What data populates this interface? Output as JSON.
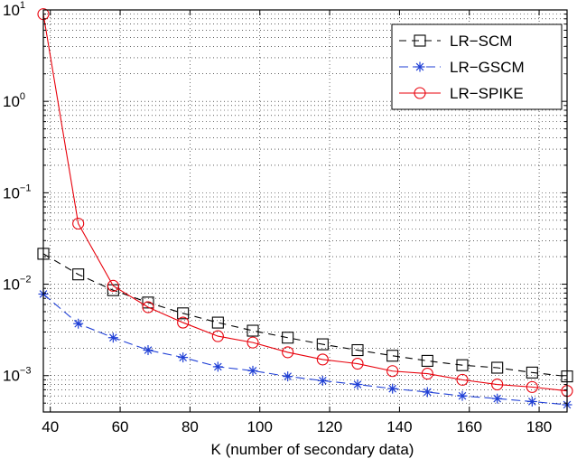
{
  "chart_data": {
    "type": "line",
    "xlabel": "K (number of secondary data)",
    "ylabel": "",
    "title": "",
    "xlim": [
      38,
      188
    ],
    "ylim": [
      0.0004,
      10
    ],
    "yscale": "log",
    "grid": true,
    "legend_position": "top-right",
    "x_ticks": [
      40,
      60,
      80,
      100,
      120,
      140,
      160,
      180
    ],
    "y_ticks": [
      {
        "value": 0.001,
        "base": "10",
        "exp": "−3"
      },
      {
        "value": 0.01,
        "base": "10",
        "exp": "−2"
      },
      {
        "value": 0.1,
        "base": "10",
        "exp": "−1"
      },
      {
        "value": 1,
        "base": "10",
        "exp": "0"
      },
      {
        "value": 10,
        "base": "10",
        "exp": "1"
      }
    ],
    "x": [
      38,
      48,
      58,
      68,
      78,
      88,
      98,
      108,
      118,
      128,
      138,
      148,
      158,
      168,
      178,
      188
    ],
    "series": [
      {
        "name": "LR−SCM",
        "color": "#000000",
        "line": "dashed",
        "marker": "square",
        "values": [
          0.0215,
          0.0128,
          0.0086,
          0.0063,
          0.0048,
          0.0038,
          0.0031,
          0.0026,
          0.0022,
          0.0019,
          0.00165,
          0.00145,
          0.0013,
          0.00122,
          0.00108,
          0.00098
        ]
      },
      {
        "name": "LR−GSCM",
        "color": "#1f3fd6",
        "line": "dashdot",
        "marker": "asterisk",
        "values": [
          0.0078,
          0.0037,
          0.0026,
          0.0019,
          0.00158,
          0.00125,
          0.00113,
          0.00098,
          0.00088,
          0.0008,
          0.00072,
          0.00066,
          0.0006,
          0.00056,
          0.00052,
          0.00048
        ]
      },
      {
        "name": "LR−SPIKE",
        "color": "#e8000b",
        "line": "solid",
        "marker": "circle",
        "values": [
          9.0,
          0.046,
          0.0096,
          0.0056,
          0.0038,
          0.0027,
          0.0023,
          0.0018,
          0.0015,
          0.00135,
          0.00112,
          0.00105,
          0.0009,
          0.0008,
          0.00075,
          0.00068
        ]
      }
    ]
  }
}
